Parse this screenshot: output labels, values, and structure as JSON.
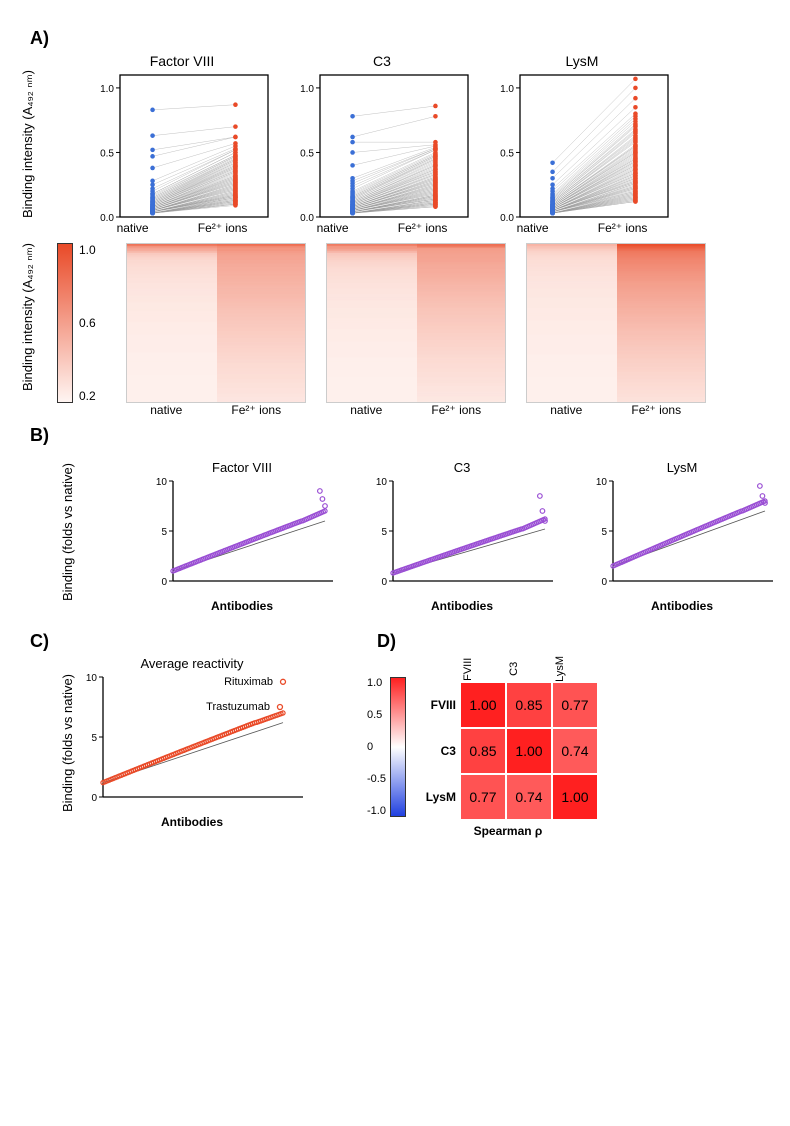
{
  "panelA": {
    "label": "A)",
    "ylabel": "Binding intensity (A₄₉₂ ₙₘ)",
    "heat_ylabel": "Binding intensity (A₄₉₂ ₙₘ)",
    "groups": [
      "Factor VIII",
      "C3",
      "LysM"
    ],
    "x_categories": [
      "native",
      "Fe²⁺ ions"
    ],
    "colors": {
      "native": "#3b6fd6",
      "fe": "#e94a28",
      "line": "#999999",
      "axis": "#000000"
    },
    "ylim": [
      0,
      1.1
    ],
    "yticks": [
      0.0,
      0.5,
      1.0
    ],
    "charts": {
      "Factor VIII": {
        "native": [
          0.83,
          0.63,
          0.52,
          0.47,
          0.38,
          0.28,
          0.25,
          0.22,
          0.2,
          0.18,
          0.18,
          0.17,
          0.16,
          0.15,
          0.15,
          0.14,
          0.14,
          0.13,
          0.13,
          0.12,
          0.12,
          0.12,
          0.11,
          0.11,
          0.11,
          0.1,
          0.1,
          0.1,
          0.1,
          0.09,
          0.09,
          0.09,
          0.09,
          0.08,
          0.08,
          0.08,
          0.08,
          0.08,
          0.07,
          0.07,
          0.07,
          0.07,
          0.07,
          0.07,
          0.06,
          0.06,
          0.06,
          0.06,
          0.06,
          0.06,
          0.06,
          0.05,
          0.05,
          0.05,
          0.05,
          0.05,
          0.05,
          0.05,
          0.05,
          0.05,
          0.05,
          0.04,
          0.04,
          0.04,
          0.04,
          0.04,
          0.04,
          0.04,
          0.04,
          0.04,
          0.04,
          0.04,
          0.04,
          0.04,
          0.03,
          0.03,
          0.03,
          0.03,
          0.03,
          0.03,
          0.03,
          0.03,
          0.03,
          0.03,
          0.03,
          0.03,
          0.03,
          0.03,
          0.03,
          0.03
        ],
        "fe": [
          0.87,
          0.7,
          0.62,
          0.62,
          0.57,
          0.55,
          0.53,
          0.52,
          0.52,
          0.5,
          0.5,
          0.48,
          0.48,
          0.47,
          0.47,
          0.46,
          0.45,
          0.45,
          0.44,
          0.44,
          0.43,
          0.42,
          0.42,
          0.41,
          0.4,
          0.4,
          0.39,
          0.39,
          0.38,
          0.38,
          0.37,
          0.36,
          0.36,
          0.35,
          0.35,
          0.34,
          0.33,
          0.32,
          0.32,
          0.31,
          0.31,
          0.3,
          0.3,
          0.29,
          0.29,
          0.28,
          0.28,
          0.27,
          0.27,
          0.26,
          0.26,
          0.25,
          0.25,
          0.24,
          0.24,
          0.23,
          0.23,
          0.22,
          0.22,
          0.21,
          0.21,
          0.2,
          0.2,
          0.19,
          0.19,
          0.18,
          0.18,
          0.17,
          0.17,
          0.17,
          0.16,
          0.16,
          0.16,
          0.15,
          0.15,
          0.15,
          0.14,
          0.14,
          0.13,
          0.13,
          0.13,
          0.12,
          0.12,
          0.12,
          0.11,
          0.11,
          0.1,
          0.1,
          0.1,
          0.09
        ]
      },
      "C3": {
        "native": [
          0.78,
          0.62,
          0.58,
          0.5,
          0.4,
          0.3,
          0.28,
          0.26,
          0.24,
          0.22,
          0.2,
          0.19,
          0.18,
          0.17,
          0.16,
          0.16,
          0.15,
          0.15,
          0.14,
          0.14,
          0.13,
          0.13,
          0.12,
          0.12,
          0.12,
          0.11,
          0.11,
          0.11,
          0.1,
          0.1,
          0.1,
          0.1,
          0.09,
          0.09,
          0.09,
          0.09,
          0.08,
          0.08,
          0.08,
          0.08,
          0.08,
          0.08,
          0.07,
          0.07,
          0.07,
          0.07,
          0.07,
          0.07,
          0.06,
          0.06,
          0.06,
          0.06,
          0.06,
          0.06,
          0.06,
          0.05,
          0.05,
          0.05,
          0.05,
          0.05,
          0.05,
          0.05,
          0.05,
          0.05,
          0.04,
          0.04,
          0.04,
          0.04,
          0.04,
          0.04,
          0.04,
          0.04,
          0.04,
          0.04,
          0.04,
          0.03,
          0.03,
          0.03,
          0.03,
          0.03,
          0.03,
          0.03,
          0.03,
          0.03,
          0.03,
          0.03,
          0.03,
          0.03,
          0.03,
          0.03
        ],
        "fe": [
          0.86,
          0.78,
          0.58,
          0.56,
          0.55,
          0.54,
          0.53,
          0.53,
          0.52,
          0.52,
          0.5,
          0.49,
          0.48,
          0.48,
          0.47,
          0.47,
          0.46,
          0.45,
          0.45,
          0.44,
          0.43,
          0.42,
          0.41,
          0.4,
          0.4,
          0.39,
          0.38,
          0.37,
          0.37,
          0.36,
          0.35,
          0.35,
          0.34,
          0.33,
          0.33,
          0.32,
          0.31,
          0.31,
          0.3,
          0.3,
          0.29,
          0.29,
          0.28,
          0.28,
          0.27,
          0.27,
          0.26,
          0.26,
          0.25,
          0.25,
          0.24,
          0.24,
          0.23,
          0.23,
          0.22,
          0.22,
          0.21,
          0.21,
          0.2,
          0.2,
          0.19,
          0.19,
          0.18,
          0.18,
          0.17,
          0.17,
          0.17,
          0.16,
          0.16,
          0.16,
          0.15,
          0.15,
          0.14,
          0.14,
          0.14,
          0.13,
          0.13,
          0.13,
          0.12,
          0.12,
          0.11,
          0.11,
          0.11,
          0.1,
          0.1,
          0.1,
          0.09,
          0.09,
          0.08,
          0.08
        ]
      },
      "LysM": {
        "native": [
          0.42,
          0.35,
          0.3,
          0.25,
          0.22,
          0.2,
          0.18,
          0.17,
          0.16,
          0.15,
          0.15,
          0.14,
          0.14,
          0.13,
          0.13,
          0.12,
          0.12,
          0.12,
          0.11,
          0.11,
          0.11,
          0.1,
          0.1,
          0.1,
          0.1,
          0.09,
          0.09,
          0.09,
          0.09,
          0.09,
          0.08,
          0.08,
          0.08,
          0.08,
          0.08,
          0.08,
          0.07,
          0.07,
          0.07,
          0.07,
          0.07,
          0.07,
          0.07,
          0.06,
          0.06,
          0.06,
          0.06,
          0.06,
          0.06,
          0.06,
          0.06,
          0.05,
          0.05,
          0.05,
          0.05,
          0.05,
          0.05,
          0.05,
          0.05,
          0.05,
          0.05,
          0.05,
          0.04,
          0.04,
          0.04,
          0.04,
          0.04,
          0.04,
          0.04,
          0.04,
          0.04,
          0.04,
          0.04,
          0.04,
          0.04,
          0.03,
          0.03,
          0.03,
          0.03,
          0.03,
          0.03,
          0.03,
          0.03,
          0.03,
          0.03,
          0.03,
          0.03,
          0.03,
          0.03,
          0.03
        ],
        "fe": [
          1.07,
          1.0,
          0.92,
          0.85,
          0.8,
          0.78,
          0.76,
          0.74,
          0.72,
          0.71,
          0.7,
          0.68,
          0.67,
          0.66,
          0.65,
          0.63,
          0.62,
          0.61,
          0.6,
          0.59,
          0.58,
          0.56,
          0.55,
          0.55,
          0.54,
          0.53,
          0.52,
          0.51,
          0.5,
          0.5,
          0.49,
          0.48,
          0.47,
          0.46,
          0.45,
          0.45,
          0.44,
          0.43,
          0.43,
          0.42,
          0.41,
          0.4,
          0.4,
          0.39,
          0.38,
          0.37,
          0.37,
          0.36,
          0.35,
          0.34,
          0.34,
          0.33,
          0.32,
          0.32,
          0.31,
          0.3,
          0.3,
          0.29,
          0.28,
          0.28,
          0.27,
          0.27,
          0.26,
          0.26,
          0.25,
          0.24,
          0.24,
          0.23,
          0.23,
          0.22,
          0.22,
          0.21,
          0.2,
          0.2,
          0.19,
          0.19,
          0.18,
          0.18,
          0.17,
          0.17,
          0.16,
          0.16,
          0.15,
          0.15,
          0.14,
          0.14,
          0.13,
          0.13,
          0.12,
          0.12
        ]
      }
    },
    "heat_legend_ticks": [
      "1.0",
      "0.6",
      "0.2"
    ],
    "heat_colors": {
      "low": "#fff5f2",
      "high": "#e94a28"
    }
  },
  "panelB": {
    "label": "B)",
    "ylabel": "Binding (folds vs native)",
    "xlabel": "Antibodies",
    "groups": [
      "Factor VIII",
      "C3",
      "LysM"
    ],
    "yticks": [
      0,
      5,
      10
    ],
    "ylim": [
      0,
      10
    ],
    "axis_color": "#000000",
    "marker_color": "#9a4fd4",
    "marker_stroke": "#9a4fd4",
    "trend_color": "#555555",
    "series": {
      "Factor VIII": {
        "start": 1.0,
        "mid": 3.0,
        "end": 6.0,
        "out": [
          7.5,
          8.2,
          9.0
        ]
      },
      "C3": {
        "start": 0.8,
        "mid": 2.8,
        "end": 5.2,
        "out": [
          6.0,
          7.0,
          8.5
        ]
      },
      "LysM": {
        "start": 1.5,
        "mid": 4.2,
        "end": 7.0,
        "out": [
          7.8,
          8.5,
          9.5
        ]
      }
    }
  },
  "panelC": {
    "label": "C)",
    "title": "Average reactivity",
    "ylabel": "Binding (folds vs native)",
    "xlabel": "Antibodies",
    "yticks": [
      0,
      5,
      10
    ],
    "ylim": [
      0,
      10
    ],
    "marker_color": "#e94a28",
    "axis_color": "#000000",
    "trend_color": "#555555",
    "annotations": [
      {
        "label": "Rituximab",
        "y": 9.6
      },
      {
        "label": "Trastuzumab",
        "y": 7.5
      }
    ],
    "series": {
      "start": 1.2,
      "mid": 3.5,
      "end": 6.2,
      "out": [
        7.5,
        9.6
      ]
    }
  },
  "panelD": {
    "label": "D)",
    "xlabel": "Spearman ρ",
    "labels": [
      "FVIII",
      "C3",
      "LysM"
    ],
    "colormap": {
      "neg": "#2040e0",
      "zero": "#ffffff",
      "pos": "#ff2020"
    },
    "legend_ticks": [
      "1.0",
      "0.5",
      "0",
      "-0.5",
      "-1.0"
    ],
    "matrix": [
      [
        1.0,
        0.85,
        0.77
      ],
      [
        0.85,
        1.0,
        0.74
      ],
      [
        0.77,
        0.74,
        1.0
      ]
    ]
  }
}
